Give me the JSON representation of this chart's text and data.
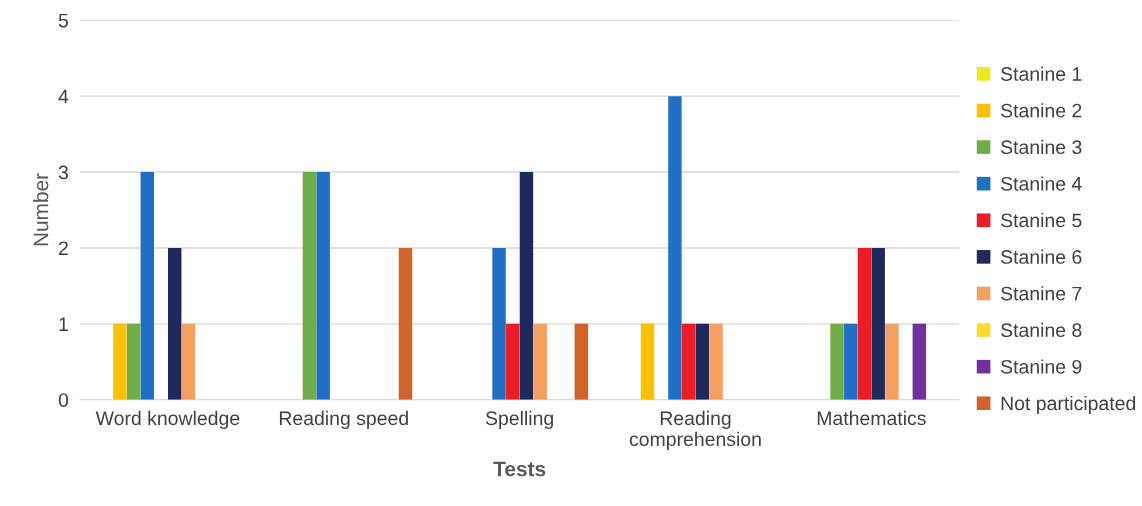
{
  "chart_data": {
    "type": "bar",
    "xlabel": "Tests",
    "ylabel": "Number",
    "categories": [
      "Word knowledge",
      "Reading speed",
      "Spelling",
      "Reading\ncomprehension",
      "Mathematics"
    ],
    "series": [
      {
        "name": "Stanine 1",
        "color": "#ede91e",
        "values": [
          0,
          0,
          0,
          0,
          0
        ]
      },
      {
        "name": "Stanine 2",
        "color": "#ffc000",
        "values": [
          1,
          0,
          0,
          1,
          0
        ]
      },
      {
        "name": "Stanine 3",
        "color": "#70ad47",
        "values": [
          1,
          3,
          0,
          0,
          1
        ]
      },
      {
        "name": "Stanine 4",
        "color": "#1f6fc4",
        "values": [
          3,
          3,
          2,
          4,
          1
        ]
      },
      {
        "name": "Stanine 5",
        "color": "#ee1c25",
        "values": [
          0,
          0,
          1,
          1,
          2
        ]
      },
      {
        "name": "Stanine 6",
        "color": "#1f2a5c",
        "values": [
          2,
          0,
          3,
          1,
          2
        ]
      },
      {
        "name": "Stanine 7",
        "color": "#f4a061",
        "values": [
          1,
          0,
          1,
          1,
          1
        ]
      },
      {
        "name": "Stanine 8",
        "color": "#ffd92e",
        "values": [
          0,
          0,
          0,
          0,
          0
        ]
      },
      {
        "name": "Stanine 9",
        "color": "#7030a0",
        "values": [
          0,
          0,
          0,
          0,
          1
        ]
      },
      {
        "name": "Not participated",
        "color": "#d2622a",
        "values": [
          0,
          2,
          1,
          0,
          0
        ]
      }
    ],
    "ylim": [
      0,
      5
    ],
    "yticks": [
      0,
      1,
      2,
      3,
      4,
      5
    ],
    "grid": "y",
    "legend": "right"
  }
}
